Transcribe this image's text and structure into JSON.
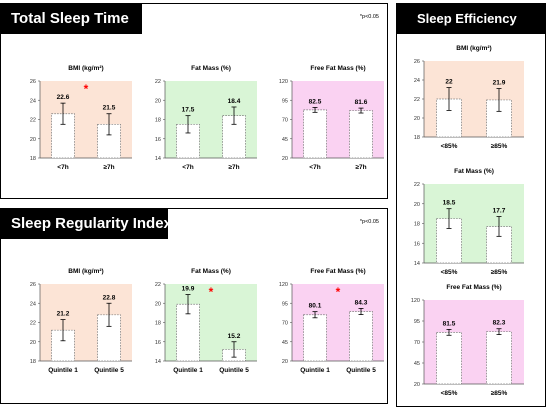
{
  "panels": {
    "total_sleep_time": {
      "title": "Total Sleep Time",
      "note": "*p<0.05"
    },
    "sleep_regularity_index": {
      "title": "Sleep Regularity Index",
      "note": "*p<0.05"
    },
    "sleep_efficiency": {
      "title": "Sleep Efficiency"
    }
  },
  "colors": {
    "bmi_bg": "#fce4d6",
    "fat_bg": "#d9f5d6",
    "ffm_bg": "#fad2f2",
    "star": "#ff0000"
  },
  "chart_data": [
    {
      "id": "tst_bmi",
      "type": "bar",
      "title": "BMI (kg/m²)",
      "categories": [
        "<7h",
        "≥7h"
      ],
      "values": [
        22.6,
        21.5
      ],
      "errors": [
        1.1,
        1.1
      ],
      "value_labels": [
        "22.6",
        "21.5"
      ],
      "ylim": [
        18,
        26
      ],
      "yticks": [
        "18",
        "20",
        "22",
        "24",
        "26"
      ],
      "significant": true,
      "bg": "bmi"
    },
    {
      "id": "tst_fat",
      "type": "bar",
      "title": "Fat Mass (%)",
      "categories": [
        "<7h",
        "≥7h"
      ],
      "values": [
        17.5,
        18.4
      ],
      "errors": [
        0.9,
        0.9
      ],
      "value_labels": [
        "17.5",
        "18.4"
      ],
      "ylim": [
        14,
        22
      ],
      "yticks": [
        "14",
        "16",
        "18",
        "20",
        "22"
      ],
      "significant": false,
      "bg": "fat"
    },
    {
      "id": "tst_ffm",
      "type": "bar",
      "title": "Free Fat Mass (%)",
      "categories": [
        "<7h",
        "≥7h"
      ],
      "values": [
        82.5,
        81.6
      ],
      "errors": [
        3.2,
        3.2
      ],
      "value_labels": [
        "82.5",
        "81.6"
      ],
      "ylim": [
        20,
        120
      ],
      "yticks": [
        "20",
        "45",
        "70",
        "95",
        "120"
      ],
      "significant": false,
      "bg": "ffm"
    },
    {
      "id": "sri_bmi",
      "type": "bar",
      "title": "BMI (kg/m²)",
      "categories": [
        "Quintile 1",
        "Quintile 5"
      ],
      "values": [
        21.2,
        22.8
      ],
      "errors": [
        1.1,
        1.2
      ],
      "value_labels": [
        "21.2",
        "22.8"
      ],
      "ylim": [
        18,
        26
      ],
      "yticks": [
        "18",
        "20",
        "22",
        "24",
        "26"
      ],
      "significant": false,
      "bg": "bmi"
    },
    {
      "id": "sri_fat",
      "type": "bar",
      "title": "Fat Mass (%)",
      "categories": [
        "Quintile 1",
        "Quintile 5"
      ],
      "values": [
        19.9,
        15.2
      ],
      "errors": [
        1.0,
        0.8
      ],
      "value_labels": [
        "19.9",
        "15.2"
      ],
      "ylim": [
        14,
        22
      ],
      "yticks": [
        "14",
        "16",
        "18",
        "20",
        "22"
      ],
      "significant": true,
      "bg": "fat"
    },
    {
      "id": "sri_ffm",
      "type": "bar",
      "title": "Free Fat Mass (%)",
      "categories": [
        "Quintile 1",
        "Quintile 5"
      ],
      "values": [
        80.1,
        84.3
      ],
      "errors": [
        4.0,
        4.0
      ],
      "value_labels": [
        "80.1",
        "84.3"
      ],
      "ylim": [
        20,
        120
      ],
      "yticks": [
        "20",
        "45",
        "70",
        "95",
        "120"
      ],
      "significant": true,
      "bg": "ffm"
    },
    {
      "id": "se_bmi",
      "type": "bar",
      "title": "BMI (kg/m²)",
      "categories": [
        "<85%",
        "≥85%"
      ],
      "values": [
        22.0,
        21.9
      ],
      "errors": [
        1.2,
        1.2
      ],
      "value_labels": [
        "22",
        "21.9"
      ],
      "ylim": [
        18,
        26
      ],
      "yticks": [
        "18",
        "20",
        "22",
        "24",
        "26"
      ],
      "significant": false,
      "bg": "bmi"
    },
    {
      "id": "se_fat",
      "type": "bar",
      "title": "Fat Mass (%)",
      "categories": [
        "<85%",
        "≥85%"
      ],
      "values": [
        18.5,
        17.7
      ],
      "errors": [
        1.0,
        1.0
      ],
      "value_labels": [
        "18.5",
        "17.7"
      ],
      "ylim": [
        14,
        22
      ],
      "yticks": [
        "14",
        "16",
        "18",
        "20",
        "22"
      ],
      "significant": false,
      "bg": "fat"
    },
    {
      "id": "se_ffm",
      "type": "bar",
      "title": "Free Fat Mass (%)",
      "categories": [
        "<85%",
        "≥85%"
      ],
      "values": [
        81.5,
        82.3
      ],
      "errors": [
        3.5,
        3.5
      ],
      "value_labels": [
        "81.5",
        "82.3"
      ],
      "ylim": [
        20,
        120
      ],
      "yticks": [
        "20",
        "45",
        "70",
        "95",
        "120"
      ],
      "significant": false,
      "bg": "ffm"
    }
  ]
}
